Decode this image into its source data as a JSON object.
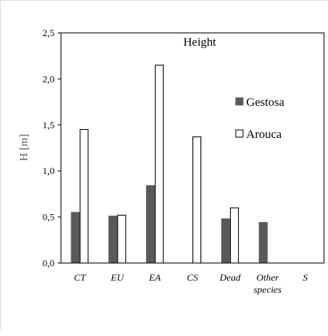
{
  "chart_data": {
    "type": "bar",
    "title": "Height",
    "xlabel": "",
    "ylabel": "H [m]",
    "ylim": [
      0,
      2.5
    ],
    "yticks": [
      0.0,
      0.5,
      1.0,
      1.5,
      2.0,
      2.5
    ],
    "ytick_labels": [
      "0,0",
      "0,5",
      "1,0",
      "1,5",
      "2,0",
      "2,5"
    ],
    "categories": [
      "CT",
      "EU",
      "EA",
      "CS",
      "Dead",
      "Other species",
      "S"
    ],
    "category_label_lines": [
      [
        "CT"
      ],
      [
        "EU"
      ],
      [
        "EA"
      ],
      [
        "CS"
      ],
      [
        "Dead"
      ],
      [
        "Other",
        "species"
      ],
      [
        "S"
      ]
    ],
    "series": [
      {
        "name": "Gestosa",
        "fill": "#595959",
        "stroke": "#595959",
        "values": [
          0.55,
          0.51,
          0.84,
          null,
          0.48,
          0.44,
          null
        ]
      },
      {
        "name": "Arouca",
        "fill": "#ffffff",
        "stroke": "#000000",
        "values": [
          1.45,
          0.52,
          2.15,
          1.37,
          0.6,
          null,
          null
        ]
      }
    ],
    "legend_position": "right",
    "grid": false
  }
}
